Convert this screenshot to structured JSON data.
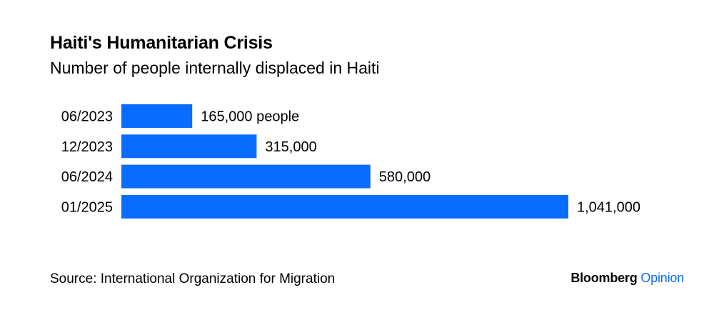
{
  "chart_data": {
    "type": "bar",
    "orientation": "horizontal",
    "title": "Haiti's Humanitarian Crisis",
    "subtitle": "Number of people internally displaced in Haiti",
    "categories": [
      "06/2023",
      "12/2023",
      "06/2024",
      "01/2025"
    ],
    "values": [
      165000,
      315000,
      580000,
      1041000
    ],
    "value_labels": [
      "165,000 people",
      "315,000",
      "580,000",
      "1,041,000"
    ],
    "xlim": [
      0,
      1041000
    ],
    "grid": false,
    "legend": "none",
    "bar_color": "#0a6cff"
  },
  "footer": {
    "source": "Source: International Organization for Migration",
    "brand_primary": "Bloomberg",
    "brand_secondary": "Opinion",
    "brand_secondary_color": "#0a6cff"
  }
}
